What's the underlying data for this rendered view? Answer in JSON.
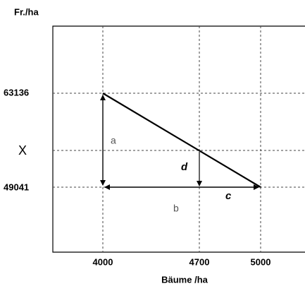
{
  "y_axis": {
    "title": "Fr./ha",
    "labels": [
      63136,
      "X",
      49041
    ]
  },
  "x_axis": {
    "title": "Bäume /ha",
    "labels": [
      4000,
      4700,
      5000
    ]
  },
  "segments": [
    "a",
    "b",
    "c",
    "d"
  ]
}
